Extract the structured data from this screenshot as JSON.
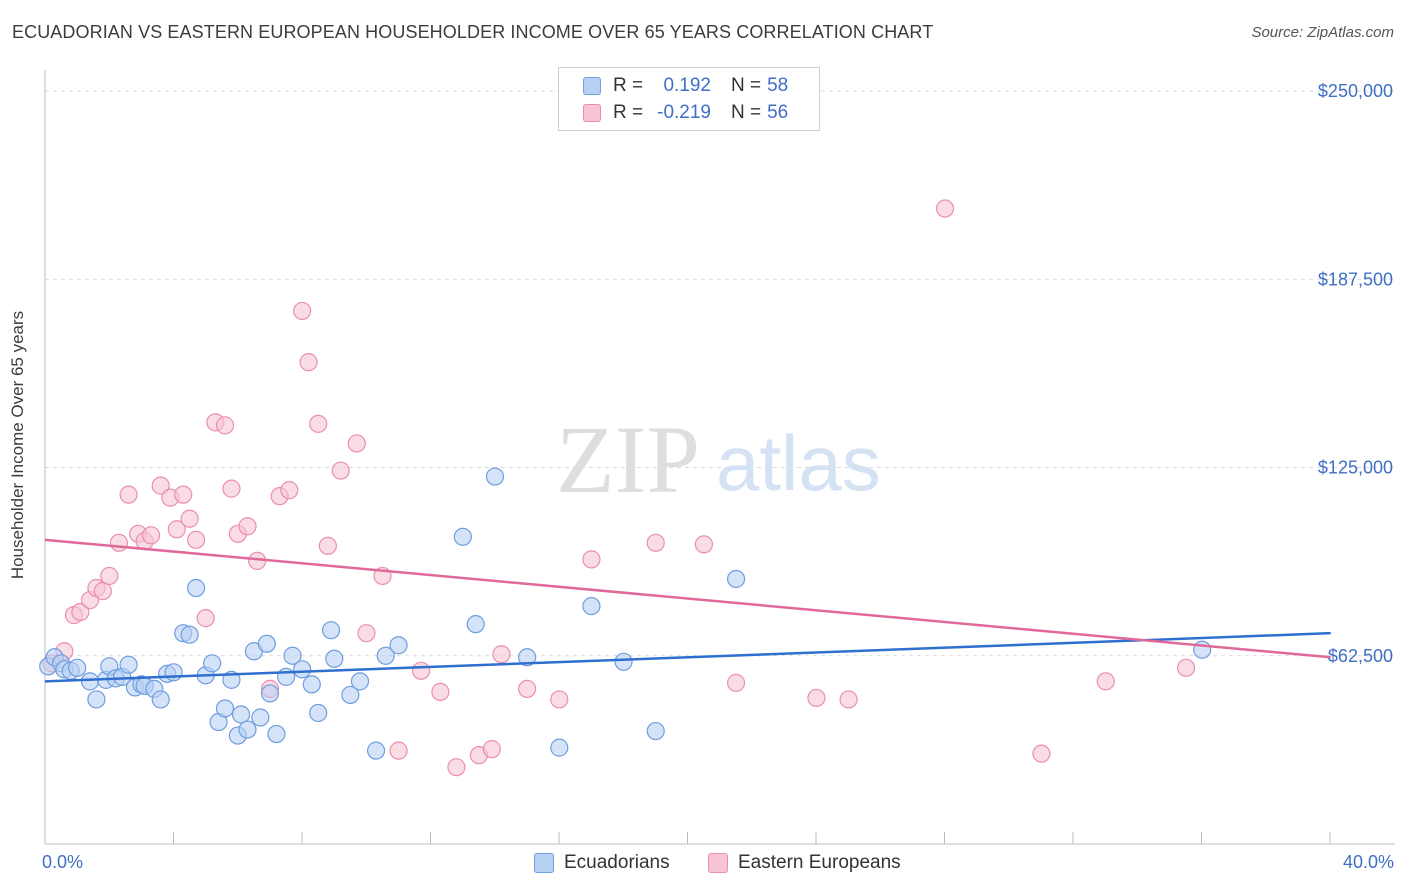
{
  "header": {
    "title": "ECUADORIAN VS EASTERN EUROPEAN HOUSEHOLDER INCOME OVER 65 YEARS CORRELATION CHART",
    "source": "Source: ZipAtlas.com"
  },
  "watermark": {
    "zip": "ZIP",
    "atlas": "atlas"
  },
  "legend": {
    "rows": [
      {
        "r_label": "R =",
        "r_value": "0.192",
        "n_label": "N =",
        "n_value": "58"
      },
      {
        "r_label": "R =",
        "r_value": "-0.219",
        "n_label": "N =",
        "n_value": "56"
      }
    ]
  },
  "colors": {
    "ecuadorian_fill": "#b8d0f2",
    "ecuadorian_stroke": "#6f9de0",
    "ecuadorian_line": "#2f6fcf",
    "eastern_fill": "#f7c4d4",
    "eastern_stroke": "#ea8fae",
    "eastern_line": "#e0699a",
    "axis_label": "#3f6fc4",
    "grid": "#d9d9d9"
  },
  "chart_data": {
    "type": "scatter",
    "ylabel": "Householder Income Over 65 years",
    "x_tick_labels": [
      "0.0%",
      "40.0%"
    ],
    "y_tick_labels": [
      "$62,500",
      "$125,000",
      "$187,500",
      "$250,000"
    ],
    "xlim": [
      0,
      42
    ],
    "ylim": [
      0,
      257000
    ],
    "y_gridlines": [
      62500,
      125000,
      187500,
      250000
    ],
    "series": [
      {
        "name": "Ecuadorians",
        "r": 0.192,
        "n": 58,
        "trend": [
          [
            0,
            54000
          ],
          [
            40,
            70000
          ]
        ],
        "points": [
          [
            0.1,
            59000
          ],
          [
            0.3,
            62000
          ],
          [
            0.5,
            60000
          ],
          [
            0.6,
            58000
          ],
          [
            0.8,
            57500
          ],
          [
            1.0,
            58500
          ],
          [
            1.4,
            54000
          ],
          [
            1.6,
            48000
          ],
          [
            1.9,
            54500
          ],
          [
            2.0,
            59000
          ],
          [
            2.2,
            55000
          ],
          [
            2.4,
            55500
          ],
          [
            2.6,
            59500
          ],
          [
            2.8,
            52000
          ],
          [
            3.0,
            53000
          ],
          [
            3.1,
            52500
          ],
          [
            3.4,
            51500
          ],
          [
            3.6,
            48000
          ],
          [
            3.8,
            56500
          ],
          [
            4.0,
            57000
          ],
          [
            4.3,
            70000
          ],
          [
            4.5,
            69500
          ],
          [
            4.7,
            85000
          ],
          [
            5.0,
            56000
          ],
          [
            5.2,
            60000
          ],
          [
            5.4,
            40500
          ],
          [
            5.6,
            45000
          ],
          [
            5.8,
            54500
          ],
          [
            6.0,
            36000
          ],
          [
            6.1,
            43000
          ],
          [
            6.3,
            38000
          ],
          [
            6.5,
            64000
          ],
          [
            6.7,
            42000
          ],
          [
            6.9,
            66500
          ],
          [
            7.0,
            50000
          ],
          [
            7.2,
            36500
          ],
          [
            7.5,
            55500
          ],
          [
            7.7,
            62500
          ],
          [
            8.0,
            58000
          ],
          [
            8.3,
            53000
          ],
          [
            8.5,
            43500
          ],
          [
            8.9,
            71000
          ],
          [
            9.0,
            61500
          ],
          [
            9.5,
            49500
          ],
          [
            9.8,
            54000
          ],
          [
            10.3,
            31000
          ],
          [
            10.6,
            62500
          ],
          [
            11.0,
            66000
          ],
          [
            13.0,
            102000
          ],
          [
            13.4,
            73000
          ],
          [
            14.0,
            122000
          ],
          [
            15.0,
            62000
          ],
          [
            16.0,
            32000
          ],
          [
            17.0,
            79000
          ],
          [
            18.0,
            60500
          ],
          [
            19.0,
            37500
          ],
          [
            21.5,
            88000
          ],
          [
            36.0,
            64500
          ]
        ]
      },
      {
        "name": "Eastern Europeans",
        "r": -0.219,
        "n": 56,
        "trend": [
          [
            0,
            101000
          ],
          [
            40,
            62000
          ]
        ],
        "points": [
          [
            0.2,
            60000
          ],
          [
            0.6,
            64000
          ],
          [
            0.9,
            76000
          ],
          [
            1.1,
            77000
          ],
          [
            1.4,
            81000
          ],
          [
            1.6,
            85000
          ],
          [
            1.8,
            84000
          ],
          [
            2.0,
            89000
          ],
          [
            2.3,
            100000
          ],
          [
            2.6,
            116000
          ],
          [
            2.9,
            103000
          ],
          [
            3.1,
            100500
          ],
          [
            3.3,
            102500
          ],
          [
            3.6,
            119000
          ],
          [
            3.9,
            115000
          ],
          [
            4.1,
            104500
          ],
          [
            4.3,
            116000
          ],
          [
            4.5,
            108000
          ],
          [
            4.7,
            101000
          ],
          [
            5.0,
            75000
          ],
          [
            5.3,
            140000
          ],
          [
            5.6,
            139000
          ],
          [
            5.8,
            118000
          ],
          [
            6.0,
            103000
          ],
          [
            6.3,
            105500
          ],
          [
            6.6,
            94000
          ],
          [
            7.0,
            51500
          ],
          [
            7.3,
            115500
          ],
          [
            7.6,
            117500
          ],
          [
            8.0,
            177000
          ],
          [
            8.2,
            160000
          ],
          [
            8.5,
            139500
          ],
          [
            8.8,
            99000
          ],
          [
            9.2,
            124000
          ],
          [
            9.7,
            133000
          ],
          [
            10.0,
            70000
          ],
          [
            10.5,
            89000
          ],
          [
            11.0,
            31000
          ],
          [
            11.7,
            57500
          ],
          [
            12.3,
            50500
          ],
          [
            12.8,
            25500
          ],
          [
            13.5,
            29500
          ],
          [
            13.9,
            31500
          ],
          [
            14.2,
            63000
          ],
          [
            15.0,
            51500
          ],
          [
            16.0,
            48000
          ],
          [
            17.0,
            94500
          ],
          [
            19.0,
            100000
          ],
          [
            20.5,
            99500
          ],
          [
            21.5,
            53500
          ],
          [
            24.0,
            48500
          ],
          [
            25.0,
            48000
          ],
          [
            28.0,
            211000
          ],
          [
            31.0,
            30000
          ],
          [
            33.0,
            54000
          ],
          [
            35.5,
            58500
          ]
        ]
      }
    ]
  }
}
